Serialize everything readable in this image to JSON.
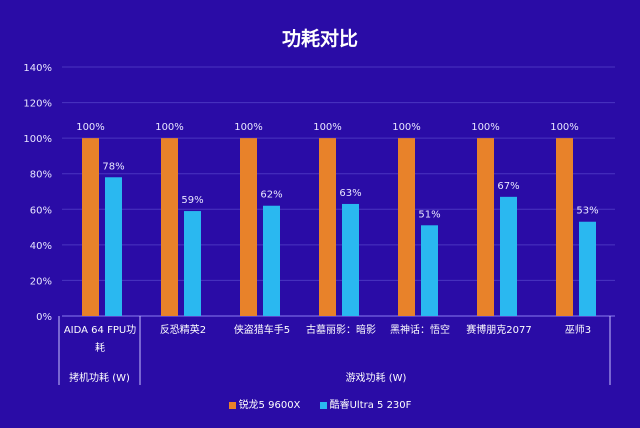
{
  "chart_data": {
    "type": "bar",
    "title": "功耗对比",
    "categories": [
      "AIDA 64 FPU功耗",
      "反恐精英2",
      "侠盗猎车手5",
      "古墓丽影：暗影",
      "黑神话：悟空",
      "赛博朋克2077",
      "巫师3"
    ],
    "category_groups": [
      {
        "label": "拷机功耗 (W)",
        "count": 1
      },
      {
        "label": "游戏功耗 (W)",
        "count": 6
      }
    ],
    "series": [
      {
        "name": "锐龙5 9600X",
        "color": "#e8822a",
        "values": [
          100,
          100,
          100,
          100,
          100,
          100,
          100
        ]
      },
      {
        "name": "酷睿Ultra 5 230F",
        "color": "#2ab8f0",
        "values": [
          78,
          59,
          62,
          63,
          51,
          67,
          53
        ]
      }
    ],
    "yticks": [
      "0%",
      "20%",
      "40%",
      "60%",
      "80%",
      "100%",
      "120%",
      "140%"
    ],
    "ylim": [
      0,
      140
    ],
    "value_suffix": "%",
    "grid": true,
    "legend_position": "bottom"
  }
}
